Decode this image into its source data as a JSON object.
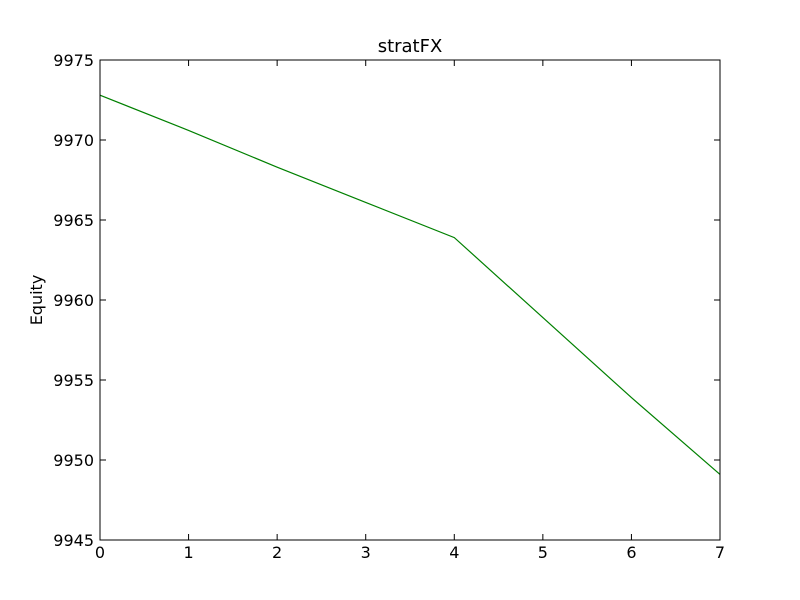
{
  "chart_data": {
    "type": "line",
    "title": "stratFX",
    "xlabel": "",
    "ylabel": "Equity",
    "xlim": [
      0,
      7
    ],
    "ylim": [
      9945,
      9975
    ],
    "x_ticks": [
      0,
      1,
      2,
      3,
      4,
      5,
      6,
      7
    ],
    "y_ticks": [
      9945,
      9950,
      9955,
      9960,
      9965,
      9970,
      9975
    ],
    "grid": false,
    "legend": "none",
    "series": [
      {
        "color": "#008000",
        "x": [
          0,
          1,
          2,
          3,
          4,
          5,
          6,
          7
        ],
        "y": [
          9972.8,
          9970.6,
          9968.3,
          9966.1,
          9963.9,
          9958.9,
          9953.9,
          9949.1
        ]
      }
    ]
  }
}
